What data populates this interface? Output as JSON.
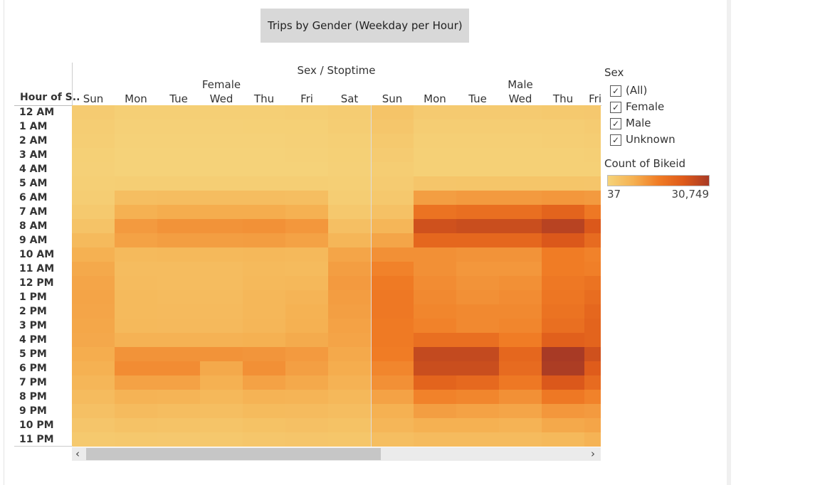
{
  "title": "Trips by Gender (Weekday per  Hour)",
  "row_header": "Hour of S..",
  "column_header": "Sex / Stoptime",
  "filter": {
    "title": "Sex",
    "items": [
      {
        "label": "(All)",
        "checked": true
      },
      {
        "label": "Female",
        "checked": true
      },
      {
        "label": "Male",
        "checked": true
      },
      {
        "label": "Unknown",
        "checked": true
      }
    ]
  },
  "color_legend": {
    "title": "Count of Bikeid",
    "min_label": "37",
    "max_label": "30,749",
    "colors": [
      "#f5d37a",
      "#f5b152",
      "#f07c25",
      "#de5a1a",
      "#a83a25"
    ]
  },
  "scroll": {
    "left_arrow": "‹",
    "right_arrow": "›"
  },
  "chart_data": {
    "type": "heatmap",
    "title": "Trips by Gender (Weekday per  Hour)",
    "measure": "Count of Bikeid",
    "color_range": [
      37,
      30749
    ],
    "groups": [
      {
        "name": "Female",
        "days": [
          "Sun",
          "Mon",
          "Tue",
          "Wed",
          "Thu",
          "Fri",
          "Sat"
        ]
      },
      {
        "name": "Male",
        "days": [
          "Sun",
          "Mon",
          "Tue",
          "Wed",
          "Thu",
          "Fri"
        ]
      }
    ],
    "hours": [
      "12 AM",
      "1 AM",
      "2 AM",
      "3 AM",
      "4 AM",
      "5 AM",
      "6 AM",
      "7 AM",
      "8 AM",
      "9 AM",
      "10 AM",
      "11 AM",
      "12 PM",
      "1 PM",
      "2 PM",
      "3 PM",
      "4 PM",
      "5 PM",
      "6 PM",
      "7 PM",
      "8 PM",
      "9 PM",
      "10 PM",
      "11 PM"
    ],
    "series": [
      {
        "name": "Female",
        "values": [
          [
            900,
            400,
            400,
            400,
            400,
            500,
            800
          ],
          [
            700,
            250,
            250,
            250,
            300,
            350,
            600
          ],
          [
            500,
            150,
            150,
            150,
            200,
            250,
            450
          ],
          [
            350,
            100,
            100,
            100,
            120,
            150,
            350
          ],
          [
            250,
            100,
            100,
            100,
            100,
            120,
            250
          ],
          [
            400,
            500,
            550,
            550,
            550,
            500,
            400
          ],
          [
            600,
            3000,
            3200,
            3200,
            3200,
            3000,
            700
          ],
          [
            1200,
            5500,
            6000,
            6000,
            6000,
            5500,
            1400
          ],
          [
            2200,
            8500,
            9500,
            9500,
            9800,
            9000,
            2800
          ],
          [
            3800,
            7500,
            8000,
            8000,
            8200,
            7500,
            4500
          ],
          [
            5500,
            3800,
            4000,
            4000,
            4200,
            4000,
            7000
          ],
          [
            6500,
            3300,
            3300,
            3300,
            3800,
            3600,
            8000
          ],
          [
            7000,
            3500,
            3300,
            3300,
            4000,
            4200,
            8500
          ],
          [
            7200,
            3800,
            3500,
            3500,
            4300,
            4800,
            8200
          ],
          [
            7000,
            3800,
            3700,
            3700,
            4300,
            5300,
            7800
          ],
          [
            6800,
            4000,
            3900,
            3900,
            4500,
            5500,
            7500
          ],
          [
            6600,
            5200,
            5200,
            5200,
            5500,
            6200,
            7200
          ],
          [
            6000,
            9500,
            9500,
            9500,
            9200,
            8500,
            6500
          ],
          [
            5500,
            10500,
            10500,
            6500,
            10000,
            7800,
            6000
          ],
          [
            4500,
            7500,
            7500,
            5500,
            7500,
            6500,
            5200
          ],
          [
            3500,
            5000,
            4800,
            4200,
            5000,
            4800,
            4200
          ],
          [
            2600,
            3500,
            3200,
            3000,
            3600,
            3500,
            3200
          ],
          [
            1800,
            2300,
            2200,
            2000,
            2400,
            2600,
            2400
          ],
          [
            1200,
            1400,
            1300,
            1400,
            1600,
            1800,
            1700
          ]
        ]
      },
      {
        "name": "Male",
        "values": [
          [
            2000,
            1000,
            1000,
            1000,
            1200,
            1300
          ],
          [
            1600,
            600,
            600,
            600,
            700,
            900
          ],
          [
            1200,
            400,
            400,
            400,
            500,
            600
          ],
          [
            900,
            300,
            300,
            300,
            300,
            400
          ],
          [
            700,
            300,
            300,
            300,
            300,
            300
          ],
          [
            900,
            1800,
            1900,
            1900,
            1900,
            1800
          ],
          [
            1400,
            8000,
            8500,
            8500,
            9000,
            8500
          ],
          [
            2500,
            15000,
            16000,
            16000,
            19000,
            14000
          ],
          [
            4500,
            24000,
            25000,
            25000,
            28000,
            22000
          ],
          [
            7000,
            18000,
            18000,
            18000,
            22000,
            17000
          ],
          [
            10000,
            10000,
            9500,
            9500,
            13000,
            12000
          ],
          [
            12000,
            10000,
            9000,
            9000,
            13000,
            12500
          ],
          [
            13500,
            10500,
            9500,
            10000,
            14000,
            15000
          ],
          [
            14000,
            11000,
            10000,
            10500,
            14500,
            16500
          ],
          [
            14000,
            11500,
            11000,
            11000,
            15000,
            18000
          ],
          [
            13500,
            12000,
            11000,
            11500,
            16000,
            19000
          ],
          [
            13500,
            16000,
            16000,
            13000,
            20000,
            19000
          ],
          [
            13000,
            26000,
            26000,
            18000,
            30749,
            24000
          ],
          [
            11500,
            25000,
            25000,
            17000,
            30000,
            21000
          ],
          [
            10000,
            19000,
            17500,
            14000,
            22000,
            17000
          ],
          [
            7500,
            12000,
            11500,
            10000,
            14000,
            12000
          ],
          [
            5500,
            8000,
            7500,
            7000,
            9000,
            8500
          ],
          [
            4500,
            5500,
            5500,
            5000,
            6500,
            7000
          ],
          [
            3000,
            3500,
            3500,
            3500,
            4000,
            5000
          ]
        ]
      }
    ]
  }
}
